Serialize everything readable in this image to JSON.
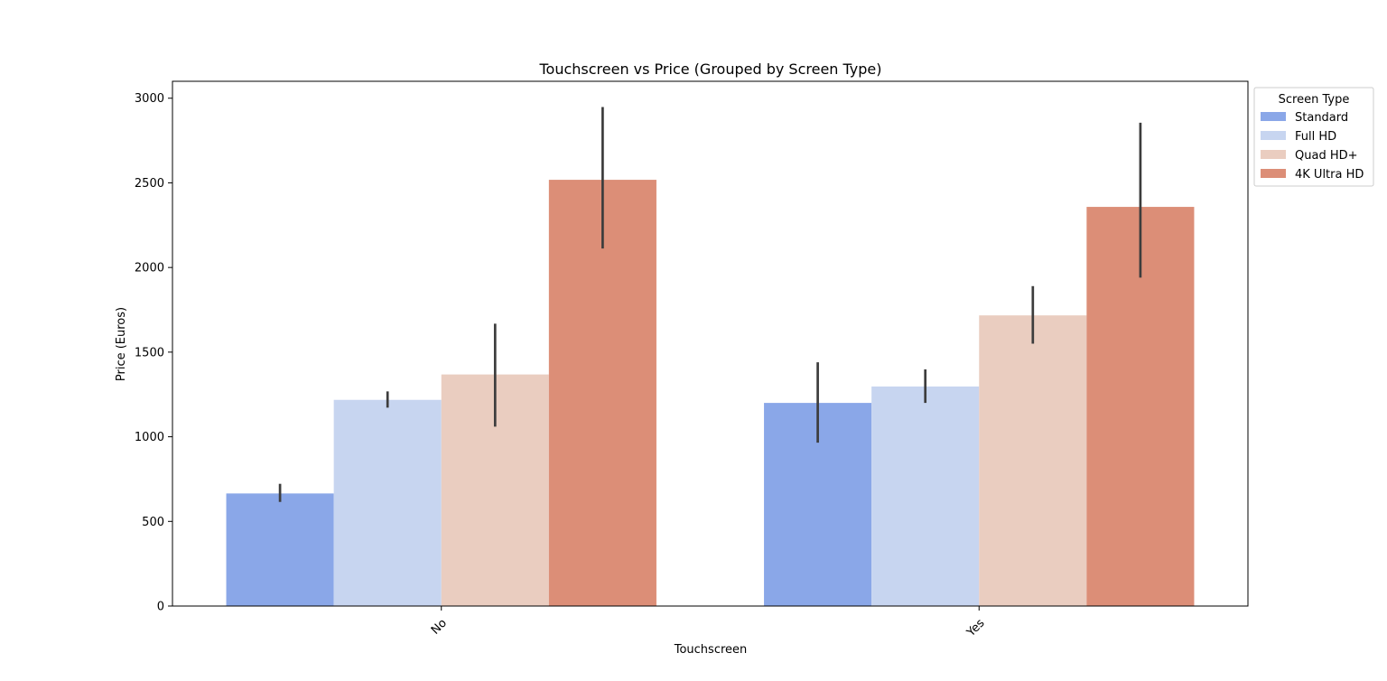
{
  "chart_data": {
    "type": "bar",
    "title": "Touchscreen vs Price (Grouped by Screen Type)",
    "xlabel": "Touchscreen",
    "ylabel": "Price (Euros)",
    "categories": [
      "No",
      "Yes"
    ],
    "ylim": [
      0,
      3100
    ],
    "yticks": [
      0,
      500,
      1000,
      1500,
      2000,
      2500,
      3000
    ],
    "legend": {
      "title": "Screen Type",
      "placement": "outside-top-right"
    },
    "series": [
      {
        "name": "Standard",
        "color": "#8aa7e8",
        "values": [
          665,
          1200
        ],
        "error_low": [
          615,
          965
        ],
        "error_high": [
          722,
          1440
        ]
      },
      {
        "name": "Full HD",
        "color": "#c7d5f0",
        "values": [
          1218,
          1297
        ],
        "error_low": [
          1172,
          1200
        ],
        "error_high": [
          1268,
          1398
        ]
      },
      {
        "name": "Quad HD+",
        "color": "#eacdc0",
        "values": [
          1368,
          1717
        ],
        "error_low": [
          1060,
          1550
        ],
        "error_high": [
          1668,
          1890
        ]
      },
      {
        "name": "4K Ultra HD",
        "color": "#dc8e77",
        "values": [
          2518,
          2358
        ],
        "error_low": [
          2112,
          1940
        ],
        "error_high": [
          2948,
          2855
        ]
      }
    ]
  }
}
